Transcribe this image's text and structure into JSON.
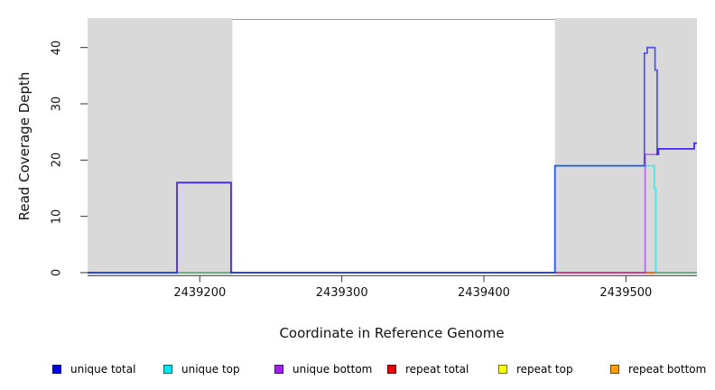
{
  "chart_data": {
    "type": "line",
    "step_style": true,
    "title": "",
    "xlabel": "Coordinate in Reference Genome",
    "ylabel": "Read Coverage Depth",
    "xlim": [
      2439121,
      2439550
    ],
    "ylim": [
      0,
      45
    ],
    "x_ticks": [
      2439200,
      2439300,
      2439400,
      2439500
    ],
    "y_ticks": [
      0,
      10,
      20,
      30,
      40
    ],
    "grid": false,
    "plot_background": "#ffffff",
    "shaded_region_color": "#d9d9d9",
    "shaded_regions": [
      {
        "name": "left-repeat-region",
        "x0": 2439121,
        "x1": 2439223
      },
      {
        "name": "right-repeat-region",
        "x0": 2439450,
        "x1": 2439550
      }
    ],
    "series": [
      {
        "name": "repeat bottom",
        "color": "#FFA000",
        "points": [
          [
            2439121,
            0
          ],
          [
            2439550,
            0
          ]
        ]
      },
      {
        "name": "repeat top",
        "color": "#FFFF00",
        "points": [
          [
            2439121,
            0
          ],
          [
            2439550,
            0
          ]
        ]
      },
      {
        "name": "repeat total",
        "color": "#E60000",
        "points": [
          [
            2439121,
            0
          ],
          [
            2439550,
            0
          ]
        ]
      },
      {
        "name": "unique bottom",
        "color": "#A020F0",
        "points": [
          [
            2439121,
            0
          ],
          [
            2439184,
            0
          ],
          [
            2439184,
            16
          ],
          [
            2439222,
            16
          ],
          [
            2439222,
            0
          ],
          [
            2439513.5,
            0
          ],
          [
            2439513.5,
            21
          ],
          [
            2439522.5,
            21
          ],
          [
            2439522.5,
            22
          ],
          [
            2439548,
            22
          ],
          [
            2439548,
            23
          ],
          [
            2439550,
            23
          ]
        ]
      },
      {
        "name": "unique top",
        "color": "#00E5EE",
        "points": [
          [
            2439121,
            0
          ],
          [
            2439450,
            0
          ],
          [
            2439450,
            19
          ],
          [
            2439520,
            19
          ],
          [
            2439520,
            15
          ],
          [
            2439521,
            15
          ],
          [
            2439521,
            0
          ],
          [
            2439550,
            0
          ]
        ]
      },
      {
        "name": "unique total",
        "color": "#0000EE",
        "points": [
          [
            2439121,
            0
          ],
          [
            2439184,
            0
          ],
          [
            2439184,
            16
          ],
          [
            2439222,
            16
          ],
          [
            2439222,
            0
          ],
          [
            2439450,
            0
          ],
          [
            2439450,
            19
          ],
          [
            2439513,
            19
          ],
          [
            2439513,
            39
          ],
          [
            2439515,
            39
          ],
          [
            2439515,
            40
          ],
          [
            2439520.5,
            40
          ],
          [
            2439520.5,
            36
          ],
          [
            2439522,
            36
          ],
          [
            2439522,
            21
          ],
          [
            2439523,
            21
          ],
          [
            2439523,
            22
          ],
          [
            2439548,
            22
          ],
          [
            2439548,
            23
          ],
          [
            2439550,
            23
          ]
        ]
      }
    ],
    "legend_position": "bottom"
  },
  "legend": {
    "items": [
      {
        "label": "unique total",
        "color": "#0000EE"
      },
      {
        "label": "unique top",
        "color": "#00E5EE"
      },
      {
        "label": "unique bottom",
        "color": "#A020F0"
      },
      {
        "label": "repeat total",
        "color": "#E60000"
      },
      {
        "label": "repeat top",
        "color": "#FFFF00"
      },
      {
        "label": "repeat bottom",
        "color": "#FFA000"
      }
    ]
  }
}
